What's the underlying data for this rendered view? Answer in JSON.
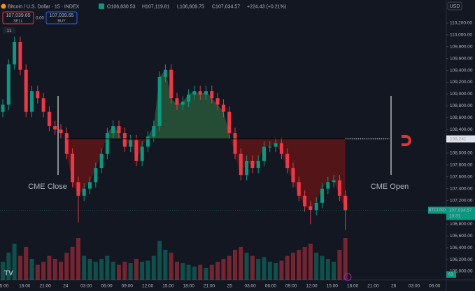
{
  "header": {
    "symbol": "Bitcoin / U.S. Dollar · 15 · INDEX",
    "ohlc": [
      "O106,830.53",
      "H107,119.81",
      "L106,609.75",
      "C107,034.57",
      "+224.43 (+0.21%)"
    ],
    "sell_price": "107,039.65",
    "sell": "SELL",
    "spread": "0.00",
    "buy_price": "107,039.65",
    "buy": "BUY",
    "indicators": "11",
    "currency": "USD"
  },
  "chart_data": {
    "type": "candlestick",
    "ylim": [
      105858,
      110590
    ],
    "yticks": [
      {
        "value": 106000,
        "label": "106,000.00"
      },
      {
        "value": 106200,
        "label": "106,200.00"
      },
      {
        "value": 106400,
        "label": "106,400.00"
      },
      {
        "value": 106600,
        "label": "106,600.00"
      },
      {
        "value": 106800,
        "label": "106,800.00"
      },
      {
        "value": 107000,
        "label": "107,000.00"
      },
      {
        "value": 107200,
        "label": "107,200.00"
      },
      {
        "value": 107400,
        "label": "107,400.00"
      },
      {
        "value": 107600,
        "label": "107,600.00"
      },
      {
        "value": 107800,
        "label": "107,800.00"
      },
      {
        "value": 108000,
        "label": "108,000.00"
      },
      {
        "value": 108200,
        "label": "108,200.00"
      },
      {
        "value": 108400,
        "label": "108,400.00"
      },
      {
        "value": 108600,
        "label": "108,600.00"
      },
      {
        "value": 108800,
        "label": "108,800.00"
      },
      {
        "value": 109000,
        "label": "109,000.00"
      },
      {
        "value": 109200,
        "label": "109,200.00"
      },
      {
        "value": 109400,
        "label": "109,400.00"
      },
      {
        "value": 109600,
        "label": "109,600.00"
      },
      {
        "value": 109800,
        "label": "109,800.00"
      },
      {
        "value": 110000,
        "label": "110,000.00"
      },
      {
        "value": 110200,
        "label": "110,200.00"
      }
    ],
    "time_labels": [
      "5:00",
      "18:00",
      "21:00",
      "24",
      "03:00",
      "06:00",
      "09:00",
      "12:00",
      "15:00",
      "18:00",
      "21:00",
      "25",
      "03:00",
      "06:00",
      "09:00",
      "12:00",
      "15:00",
      "18:00",
      "21:00",
      "26",
      "03:00",
      "06:00"
    ],
    "open": [
      108700,
      108820,
      109500,
      109880,
      109410,
      108700,
      109050,
      108930,
      108700,
      108460,
      108400,
      108340,
      107990,
      107510,
      107280,
      107400,
      107510,
      107750,
      107990,
      108340,
      108460,
      108340,
      108110,
      108220,
      107870,
      108110,
      108280,
      108460,
      109290,
      109410,
      108930,
      108820,
      108870,
      108990,
      109050,
      108990,
      109050,
      108930,
      108820,
      108700,
      108340,
      107990,
      107630,
      107870,
      107750,
      107870,
      108110,
      108110,
      108170,
      107990,
      107750,
      107510,
      107280,
      107100,
      107040,
      107160,
      107400,
      107510,
      107540,
      107280
    ],
    "high": [
      108910,
      109590,
      109970,
      109970,
      109500,
      109140,
      109140,
      109020,
      108790,
      108550,
      108490,
      108430,
      108080,
      107600,
      107490,
      107600,
      107840,
      108080,
      108430,
      108550,
      108550,
      108430,
      108310,
      108310,
      108200,
      108370,
      108550,
      109380,
      109500,
      109500,
      109020,
      108960,
      109080,
      109140,
      109140,
      109140,
      109140,
      109020,
      108910,
      108790,
      108430,
      108080,
      107960,
      107960,
      107960,
      108200,
      108200,
      108260,
      108260,
      108080,
      107840,
      107600,
      107370,
      107190,
      107250,
      107490,
      107600,
      107630,
      107630,
      107370
    ],
    "low": [
      108610,
      108730,
      109410,
      109320,
      108610,
      108610,
      108840,
      108610,
      108370,
      108310,
      108250,
      107900,
      107420,
      106830,
      107190,
      107310,
      107420,
      107660,
      107900,
      108250,
      108250,
      108020,
      108020,
      107780,
      107780,
      108020,
      108190,
      108370,
      109200,
      108840,
      108730,
      108730,
      108780,
      108900,
      108900,
      108900,
      108840,
      108730,
      108610,
      108250,
      107900,
      107540,
      107540,
      107660,
      107660,
      107780,
      108020,
      108020,
      107900,
      107660,
      107420,
      107190,
      107010,
      106800,
      106950,
      107070,
      107310,
      107420,
      107190,
      106700
    ],
    "close": [
      108820,
      109500,
      109880,
      109410,
      108700,
      109050,
      108930,
      108700,
      108460,
      108400,
      108340,
      107990,
      107510,
      107280,
      107400,
      107510,
      107750,
      107990,
      108340,
      108460,
      108340,
      108110,
      108220,
      107870,
      108110,
      108280,
      108460,
      109290,
      109410,
      108930,
      108820,
      108870,
      108990,
      109050,
      108990,
      109050,
      108930,
      108820,
      108700,
      108340,
      107990,
      107630,
      107870,
      107750,
      107870,
      108110,
      108110,
      108170,
      107990,
      107750,
      107510,
      107280,
      107100,
      107040,
      107160,
      107400,
      107510,
      107540,
      107280,
      107034.57
    ],
    "volume": [
      30,
      45,
      60,
      40,
      55,
      35,
      25,
      30,
      40,
      35,
      30,
      45,
      55,
      70,
      40,
      35,
      30,
      35,
      40,
      30,
      25,
      30,
      28,
      35,
      30,
      32,
      40,
      65,
      50,
      45,
      30,
      28,
      25,
      22,
      25,
      20,
      25,
      30,
      35,
      40,
      50,
      55,
      45,
      40,
      35,
      38,
      30,
      28,
      32,
      40,
      45,
      50,
      55,
      60,
      45,
      40,
      35,
      30,
      50,
      70
    ],
    "up_color": "#089981",
    "down_color": "#f23645",
    "gap_level": {
      "value": 108241,
      "label": "108,241"
    },
    "annotations": [
      "CME Close",
      "CME Open"
    ],
    "last_price": {
      "symbol": "BTCUSD",
      "value": 107034.57,
      "label": "107,034.57",
      "countdown": "10:31"
    },
    "volume_tag": "63"
  }
}
